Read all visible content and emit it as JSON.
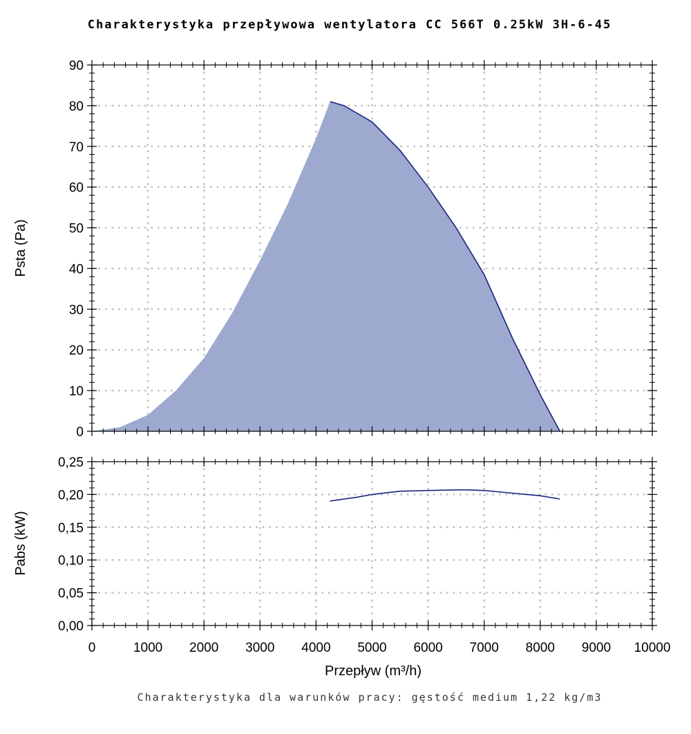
{
  "chart_data": [
    {
      "type": "area",
      "title": "Charakterystyka przepływowa wentylatora CC 566T 0.25kW 3H-6-45",
      "xlabel": "Przepływ (m³/h)",
      "ylabel": "Psta (Pa)",
      "xlim": [
        0,
        10000
      ],
      "ylim": [
        0,
        90
      ],
      "x_ticks": [
        "0",
        "1000",
        "2000",
        "3000",
        "4000",
        "5000",
        "6000",
        "7000",
        "8000",
        "9000",
        "10000"
      ],
      "y_ticks": [
        "0",
        "10",
        "20",
        "30",
        "40",
        "50",
        "60",
        "70",
        "80",
        "90"
      ],
      "grid": true,
      "series": [
        {
          "role": "operating-area",
          "x": [
            0,
            500,
            1000,
            1500,
            2000,
            2500,
            3000,
            3500,
            4000,
            4250,
            4500,
            5000,
            5500,
            6000,
            6500,
            7000,
            7500,
            8000,
            8350
          ],
          "values": [
            0,
            1,
            4,
            10,
            18,
            29,
            42,
            56,
            72,
            81,
            80,
            76,
            69,
            60,
            50,
            38.5,
            23,
            9,
            0
          ]
        },
        {
          "role": "fan-curve",
          "x": [
            4250,
            4500,
            5000,
            5500,
            6000,
            6500,
            7000,
            7500,
            8000,
            8350
          ],
          "values": [
            81,
            80,
            76,
            69,
            60,
            50,
            38.5,
            23,
            9,
            0
          ]
        }
      ],
      "colors": {
        "fill": "#9ea9cf",
        "line": "#1a237e"
      }
    },
    {
      "type": "line",
      "xlabel": "Przepływ (m³/h)",
      "ylabel": "Pabs (kW)",
      "xlim": [
        0,
        10000
      ],
      "ylim": [
        0,
        0.25
      ],
      "x_ticks": [
        "0",
        "1000",
        "2000",
        "3000",
        "4000",
        "5000",
        "6000",
        "7000",
        "8000",
        "9000",
        "10000"
      ],
      "y_ticks": [
        "0,00",
        "0,05",
        "0,10",
        "0,15",
        "0,20",
        "0,25"
      ],
      "grid": true,
      "series": [
        {
          "x": [
            4250,
            4750,
            5000,
            5500,
            6000,
            6500,
            6700,
            7000,
            7500,
            8000,
            8350
          ],
          "values": [
            0.19,
            0.196,
            0.2,
            0.205,
            0.206,
            0.207,
            0.207,
            0.206,
            0.202,
            0.198,
            0.193
          ]
        }
      ],
      "colors": {
        "line": "#1a237e"
      }
    }
  ],
  "footnote": "Charakterystyka dla warunków pracy: gęstość medium 1,22 kg/m3"
}
